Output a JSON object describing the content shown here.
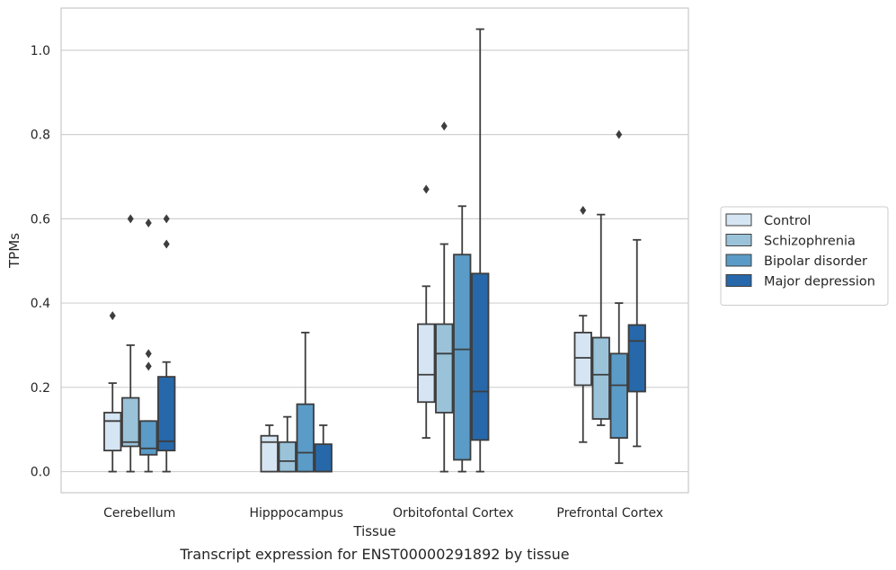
{
  "caption": "Transcript expression for ENST00000291892 by tissue",
  "chart_data": {
    "type": "box",
    "xlabel": "Tissue",
    "ylabel": "TPMs",
    "ylim": [
      -0.05,
      1.1
    ],
    "yticks": [
      0.0,
      0.2,
      0.4,
      0.6,
      0.8,
      1.0
    ],
    "ytick_labels": [
      "0.0",
      "0.2",
      "0.4",
      "0.6",
      "0.8",
      "1.0"
    ],
    "grid": true,
    "legend_position": "right",
    "categories": [
      "Cerebellum",
      "Hipppocampus",
      "Orbitofontal Cortex",
      "Prefrontal Cortex"
    ],
    "series": [
      {
        "name": "Control",
        "color": "#d6e5f3",
        "boxes": [
          {
            "whislo": 0.0,
            "q1": 0.05,
            "med": 0.12,
            "q3": 0.14,
            "whishi": 0.21,
            "fliers": [
              0.37
            ]
          },
          {
            "whislo": 0.0,
            "q1": 0.0,
            "med": 0.07,
            "q3": 0.085,
            "whishi": 0.11,
            "fliers": []
          },
          {
            "whislo": 0.08,
            "q1": 0.165,
            "med": 0.23,
            "q3": 0.35,
            "whishi": 0.44,
            "fliers": [
              0.67
            ]
          },
          {
            "whislo": 0.07,
            "q1": 0.205,
            "med": 0.27,
            "q3": 0.33,
            "whishi": 0.37,
            "fliers": [
              0.62
            ]
          }
        ]
      },
      {
        "name": "Schizophrenia",
        "color": "#9ac3da",
        "boxes": [
          {
            "whislo": 0.0,
            "q1": 0.06,
            "med": 0.07,
            "q3": 0.175,
            "whishi": 0.3,
            "fliers": [
              0.6
            ]
          },
          {
            "whislo": 0.0,
            "q1": 0.0,
            "med": 0.025,
            "q3": 0.07,
            "whishi": 0.13,
            "fliers": []
          },
          {
            "whislo": 0.0,
            "q1": 0.14,
            "med": 0.28,
            "q3": 0.35,
            "whishi": 0.54,
            "fliers": [
              0.82
            ]
          },
          {
            "whislo": 0.11,
            "q1": 0.125,
            "med": 0.23,
            "q3": 0.318,
            "whishi": 0.61,
            "fliers": []
          }
        ]
      },
      {
        "name": "Bipolar disorder",
        "color": "#5a9bc8",
        "boxes": [
          {
            "whislo": 0.0,
            "q1": 0.04,
            "med": 0.055,
            "q3": 0.12,
            "whishi": 0.12,
            "fliers": [
              0.59,
              0.28,
              0.25
            ]
          },
          {
            "whislo": 0.0,
            "q1": 0.0,
            "med": 0.045,
            "q3": 0.16,
            "whishi": 0.33,
            "fliers": []
          },
          {
            "whislo": 0.0,
            "q1": 0.028,
            "med": 0.29,
            "q3": 0.515,
            "whishi": 0.63,
            "fliers": []
          },
          {
            "whislo": 0.02,
            "q1": 0.08,
            "med": 0.205,
            "q3": 0.28,
            "whishi": 0.4,
            "fliers": [
              0.8
            ]
          }
        ]
      },
      {
        "name": "Major depression",
        "color": "#2668aa",
        "boxes": [
          {
            "whislo": 0.0,
            "q1": 0.05,
            "med": 0.072,
            "q3": 0.225,
            "whishi": 0.26,
            "fliers": [
              0.6,
              0.54
            ]
          },
          {
            "whislo": 0.0,
            "q1": 0.0,
            "med": 0.0,
            "q3": 0.065,
            "whishi": 0.11,
            "fliers": []
          },
          {
            "whislo": 0.0,
            "q1": 0.075,
            "med": 0.19,
            "q3": 0.47,
            "whishi": 1.05,
            "fliers": []
          },
          {
            "whislo": 0.06,
            "q1": 0.19,
            "med": 0.31,
            "q3": 0.348,
            "whishi": 0.55,
            "fliers": []
          }
        ]
      }
    ]
  }
}
